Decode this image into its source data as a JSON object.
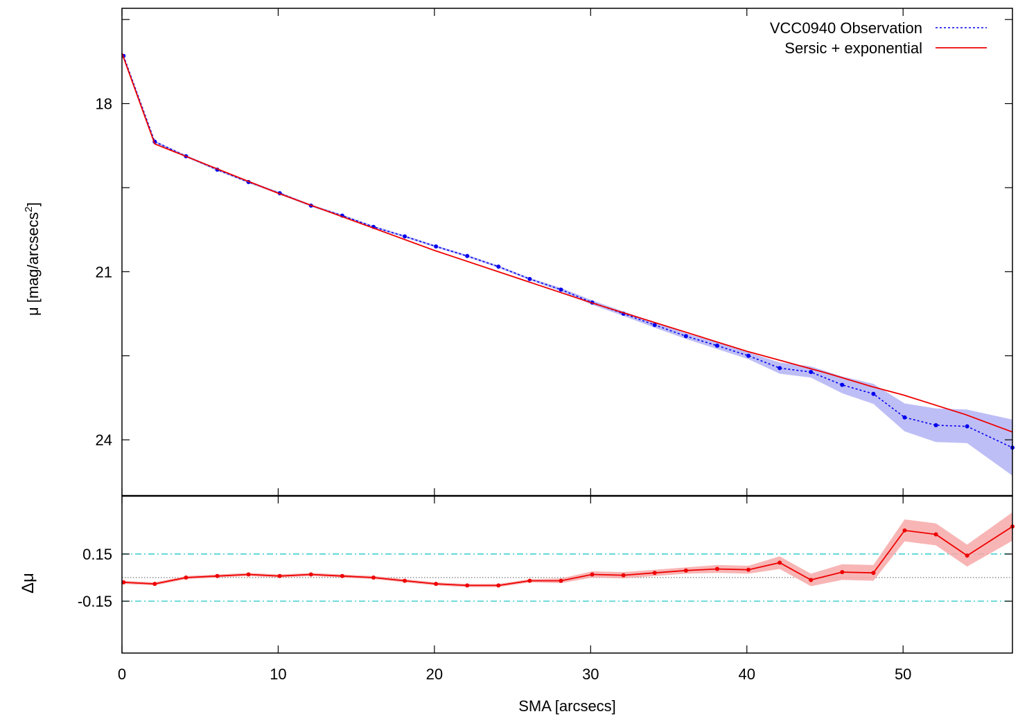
{
  "chart_data": [
    {
      "type": "line",
      "panel": "top",
      "ylabel": "μ [mag/arcsecs2]",
      "ylabel_main": "μ [mag/arcsecs",
      "ylabel_sup": "2",
      "xlim": [
        0,
        57
      ],
      "ylim": [
        25.0,
        16.3
      ],
      "y_inverted": true,
      "yticks": [
        18,
        21,
        24
      ],
      "legend_position": "top-right",
      "colors": {
        "observation": "#0000ee",
        "band": "#b3b3f5",
        "model": "#ee0000"
      },
      "series": [
        {
          "name": "VCC0940 Observation",
          "style": "dotted-with-points",
          "x": [
            0.1,
            2.1,
            4.1,
            6.1,
            8.1,
            10.1,
            12.1,
            14.1,
            16.1,
            18.1,
            20.1,
            22.1,
            24.1,
            26.1,
            28.1,
            30.1,
            32.1,
            34.1,
            36.1,
            38.1,
            40.1,
            42.1,
            44.1,
            46.1,
            48.1,
            50.1,
            52.1,
            54.1,
            57.0
          ],
          "y": [
            17.15,
            18.68,
            18.94,
            19.18,
            19.4,
            19.6,
            19.82,
            20.0,
            20.2,
            20.37,
            20.55,
            20.72,
            20.91,
            21.13,
            21.32,
            21.55,
            21.75,
            21.95,
            22.15,
            22.32,
            22.5,
            22.72,
            22.79,
            23.02,
            23.18,
            23.6,
            23.74,
            23.76,
            24.14
          ],
          "err": [
            0.02,
            0.02,
            0.02,
            0.02,
            0.02,
            0.02,
            0.02,
            0.02,
            0.02,
            0.02,
            0.02,
            0.02,
            0.02,
            0.02,
            0.03,
            0.04,
            0.04,
            0.05,
            0.05,
            0.06,
            0.06,
            0.1,
            0.1,
            0.15,
            0.18,
            0.25,
            0.3,
            0.3,
            0.5
          ]
        },
        {
          "name": "Sersic + exponential",
          "style": "solid",
          "x": [
            0.0,
            2.1,
            10.0,
            20.0,
            30.0,
            40.0,
            45.0,
            48.0,
            50.0,
            54.0,
            57.0
          ],
          "y": [
            17.1,
            18.72,
            19.6,
            20.62,
            21.55,
            22.42,
            22.8,
            23.05,
            23.2,
            23.55,
            23.86
          ]
        }
      ]
    },
    {
      "type": "line",
      "panel": "bottom",
      "xlabel": "SMA [arcsecs]",
      "ylabel": "Δμ",
      "xlim": [
        0,
        57
      ],
      "xticks": [
        0,
        10,
        20,
        30,
        40,
        50
      ],
      "ylim": [
        -0.48,
        0.52
      ],
      "yticks": [
        0.15,
        -0.15
      ],
      "ytick_labels": [
        "0.15",
        "-0.15"
      ],
      "reference_lines": [
        {
          "y": 0.15,
          "style": "dash-dot",
          "color": "#33cccc"
        },
        {
          "y": -0.15,
          "style": "dash-dot",
          "color": "#33cccc"
        },
        {
          "y": 0.0,
          "style": "dotted",
          "color": "#555555"
        }
      ],
      "series": [
        {
          "name": "",
          "style": "solid-with-points",
          "color": "#ee0000",
          "band_color": "#f7a8a8",
          "x": [
            0.1,
            2.1,
            4.1,
            6.1,
            8.1,
            10.1,
            12.1,
            14.1,
            16.1,
            18.1,
            20.1,
            22.1,
            24.1,
            26.1,
            28.1,
            30.1,
            32.1,
            34.1,
            36.1,
            38.1,
            40.1,
            42.1,
            44.1,
            46.1,
            48.1,
            50.1,
            52.1,
            54.1,
            57.0
          ],
          "y": [
            -0.03,
            -0.04,
            0.0,
            0.01,
            0.02,
            0.01,
            0.02,
            0.01,
            0.0,
            -0.02,
            -0.04,
            -0.05,
            -0.05,
            -0.02,
            -0.02,
            0.02,
            0.015,
            0.03,
            0.045,
            0.055,
            0.05,
            0.095,
            -0.015,
            0.035,
            0.03,
            0.3,
            0.275,
            0.14,
            0.325
          ],
          "err": [
            0.01,
            0.01,
            0.01,
            0.01,
            0.01,
            0.01,
            0.01,
            0.01,
            0.01,
            0.01,
            0.01,
            0.01,
            0.01,
            0.01,
            0.015,
            0.02,
            0.02,
            0.02,
            0.02,
            0.025,
            0.025,
            0.04,
            0.04,
            0.05,
            0.05,
            0.07,
            0.07,
            0.07,
            0.09
          ]
        }
      ]
    }
  ]
}
